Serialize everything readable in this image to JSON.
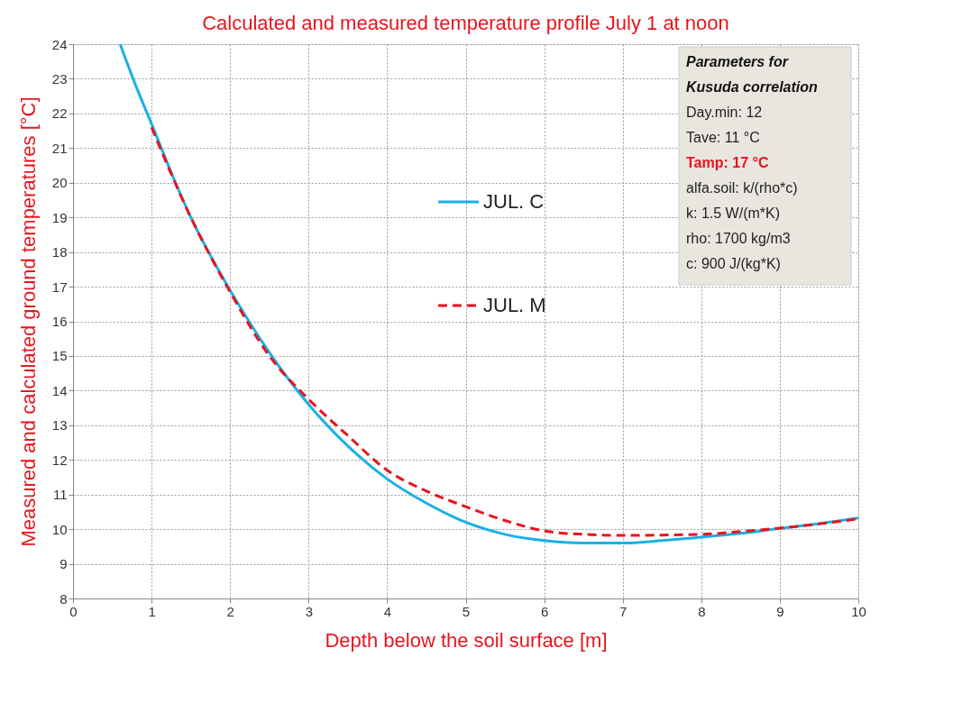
{
  "chart_data": {
    "type": "line",
    "title": "Calculated and measured temperature profile July 1 at noon",
    "xlabel": "Depth below the soil surface [m]",
    "ylabel": "Measured and calculated ground temperatures [°C]",
    "xlim": [
      0,
      10
    ],
    "xticks": [
      0,
      1,
      2,
      3,
      4,
      5,
      6,
      7,
      8,
      9,
      10
    ],
    "ylim": [
      8,
      24
    ],
    "yticks": [
      8,
      9,
      10,
      11,
      12,
      13,
      14,
      15,
      16,
      17,
      18,
      19,
      20,
      21,
      22,
      23,
      24
    ],
    "grid": true,
    "legend": "top",
    "marker": "none",
    "series": [
      {
        "name": "JUL. C",
        "color": "#1ab0e6",
        "line_style": "solid",
        "x": [
          0.6,
          0.8,
          1,
          1.25,
          1.5,
          1.75,
          2,
          2.5,
          3,
          3.5,
          4,
          4.5,
          5,
          5.5,
          6,
          6.5,
          7,
          7.5,
          8,
          8.5,
          9,
          9.5,
          10
        ],
        "values": [
          24,
          22.8,
          21.7,
          20.3,
          19.0,
          17.9,
          16.9,
          15.1,
          13.6,
          12.4,
          11.45,
          10.75,
          10.2,
          9.85,
          9.67,
          9.6,
          9.6,
          9.67,
          9.77,
          9.88,
          10.02,
          10.16,
          10.32
        ]
      },
      {
        "name": "JUL. M",
        "color": "#e8141c",
        "line_style": "dashed",
        "x": [
          1,
          1.5,
          2,
          2.5,
          3,
          3.5,
          4,
          4.5,
          5,
          5.5,
          6,
          6.5,
          7,
          7.5,
          8,
          8.5,
          9,
          9.5,
          10
        ],
        "values": [
          21.6,
          19.0,
          16.85,
          15.0,
          13.75,
          12.7,
          11.7,
          11.1,
          10.65,
          10.25,
          9.95,
          9.85,
          9.82,
          9.83,
          9.85,
          9.93,
          10.03,
          10.15,
          10.3
        ]
      }
    ],
    "annotations": [
      "Parameters for",
      "Kusuda correlation",
      "Day.min: 12",
      "Tave: 11 °C",
      "Tamp: 17 °C",
      "alfa.soil: k/(rho*c)",
      "k: 1.5 W/(m*K)",
      "rho: 1700 kg/m3",
      "c: 900 J/(kg*K)"
    ]
  }
}
